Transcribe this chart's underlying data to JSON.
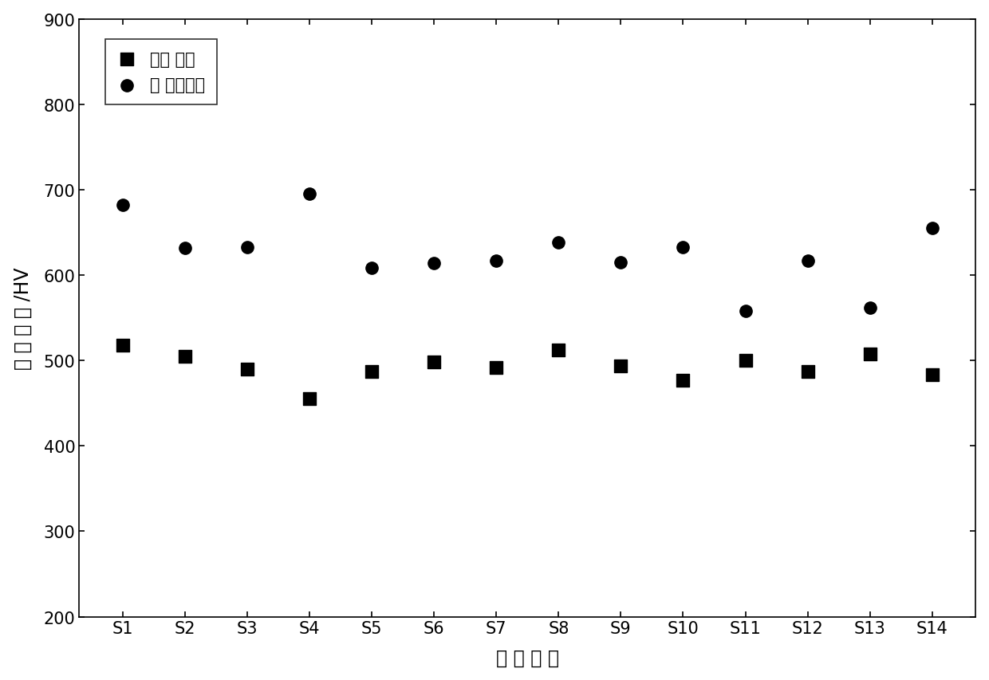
{
  "categories": [
    "S1",
    "S2",
    "S3",
    "S4",
    "S5",
    "S6",
    "S7",
    "S8",
    "S9",
    "S10",
    "S11",
    "S12",
    "S13",
    "S14"
  ],
  "series1_label": "未预 处理",
  "series2_label": "真 空预处理",
  "series1_values": [
    518,
    505,
    490,
    455,
    487,
    498,
    492,
    512,
    494,
    477,
    500,
    487,
    508,
    483
  ],
  "series2_values": [
    682,
    632,
    633,
    695,
    608,
    614,
    617,
    638,
    615,
    633,
    558,
    617,
    562,
    655
  ],
  "xlabel": "试 样 编 号",
  "ylabel": "表 面 硬 度 /HV",
  "ylim": [
    200,
    900
  ],
  "yticks": [
    200,
    300,
    400,
    500,
    600,
    700,
    800,
    900
  ],
  "marker1": "s",
  "marker2": "o",
  "color": "#000000",
  "bg_color": "#ffffff",
  "marker_size": 11,
  "fontsize_ticks": 15,
  "fontsize_label": 17,
  "fontsize_legend": 15
}
